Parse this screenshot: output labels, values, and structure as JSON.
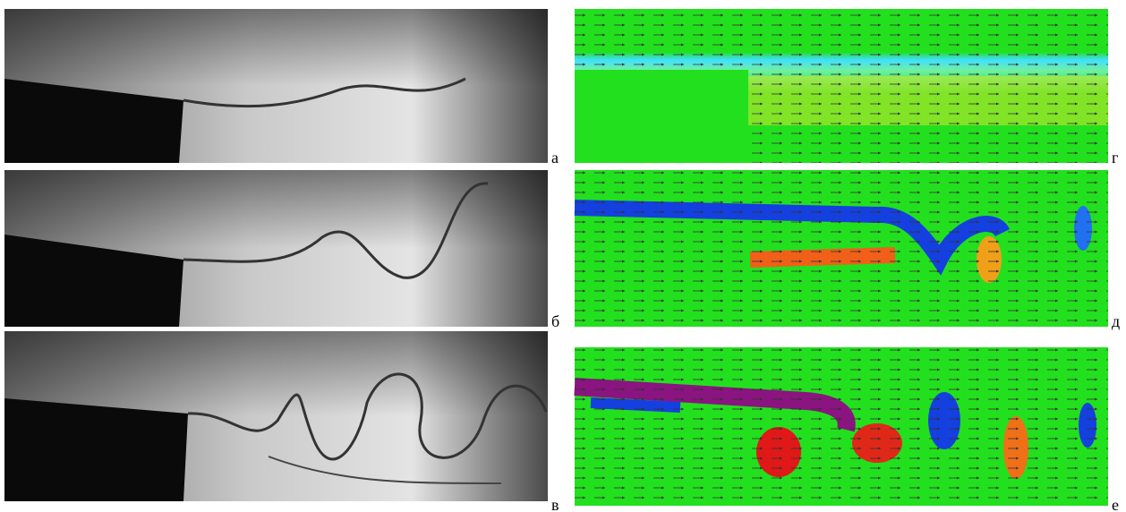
{
  "panels": [
    {
      "label": "а"
    },
    {
      "label": "б"
    },
    {
      "label": "в"
    },
    {
      "label": "г"
    },
    {
      "label": "д"
    },
    {
      "label": "е"
    }
  ]
}
